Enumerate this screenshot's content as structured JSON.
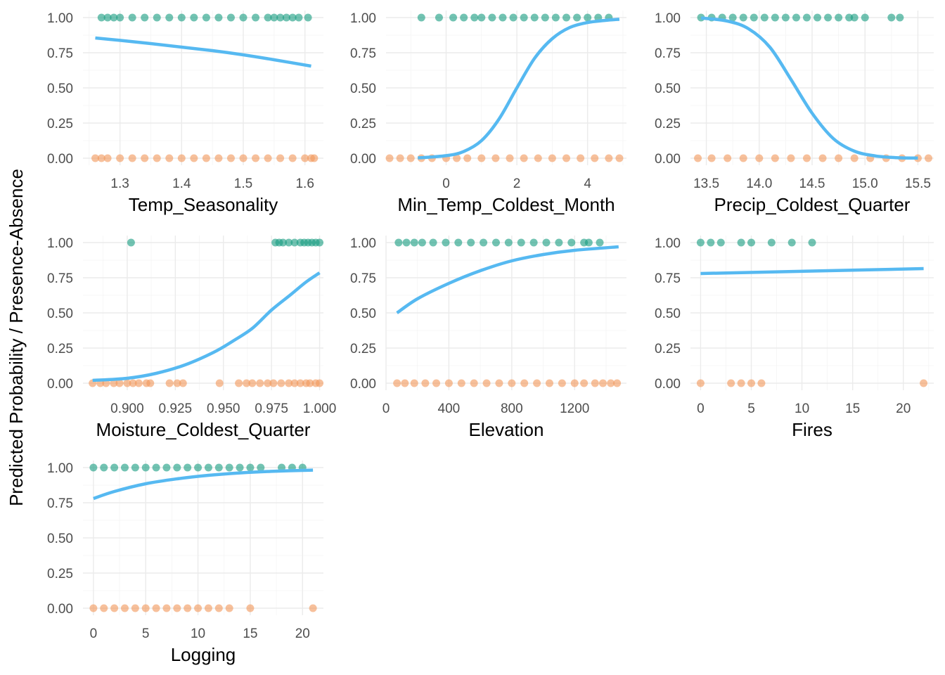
{
  "y_axis_title": "Predicted Probability / Presence-Absence",
  "colors": {
    "presence": "#1b9e82",
    "absence": "#f29a5e",
    "curve": "#56b9f1"
  },
  "chart_data": [
    {
      "type": "scatter",
      "xlabel": "Temp_Seasonality",
      "xlim": [
        1.24,
        1.63
      ],
      "xticks": [
        1.3,
        1.4,
        1.5,
        1.6
      ],
      "xtick_labels": [
        "1.3",
        "1.4",
        "1.5",
        "1.6"
      ],
      "ylim": [
        -0.05,
        1.05
      ],
      "yticks": [
        0,
        0.25,
        0.5,
        0.75,
        1
      ],
      "ytick_labels": [
        "0.00",
        "0.25",
        "0.50",
        "0.75",
        "1.00"
      ],
      "grid": true,
      "presence_x": [
        1.27,
        1.28,
        1.29,
        1.3,
        1.32,
        1.34,
        1.36,
        1.38,
        1.4,
        1.42,
        1.44,
        1.46,
        1.48,
        1.5,
        1.52,
        1.54,
        1.55,
        1.56,
        1.57,
        1.58,
        1.59,
        1.605
      ],
      "absence_x": [
        1.26,
        1.27,
        1.28,
        1.3,
        1.32,
        1.34,
        1.36,
        1.38,
        1.4,
        1.42,
        1.44,
        1.46,
        1.48,
        1.5,
        1.52,
        1.54,
        1.56,
        1.58,
        1.6,
        1.61,
        1.615
      ],
      "curve": [
        [
          1.26,
          0.855
        ],
        [
          1.3,
          0.838
        ],
        [
          1.35,
          0.815
        ],
        [
          1.4,
          0.79
        ],
        [
          1.45,
          0.765
        ],
        [
          1.5,
          0.735
        ],
        [
          1.55,
          0.7
        ],
        [
          1.61,
          0.655
        ]
      ]
    },
    {
      "type": "scatter",
      "xlabel": "Min_Temp_Coldest_Month",
      "xlim": [
        -1.7,
        5.1
      ],
      "xticks": [
        0,
        2,
        4
      ],
      "xtick_labels": [
        "0",
        "2",
        "4"
      ],
      "ylim": [
        -0.05,
        1.05
      ],
      "yticks": [
        0,
        0.25,
        0.5,
        0.75,
        1
      ],
      "ytick_labels": [
        "0.00",
        "0.25",
        "0.50",
        "0.75",
        "1.00"
      ],
      "grid": true,
      "presence_x": [
        -0.7,
        -0.2,
        0.2,
        0.5,
        0.8,
        1.0,
        1.3,
        1.6,
        1.9,
        2.2,
        2.5,
        2.8,
        3.1,
        3.4,
        3.7,
        4.0,
        4.3,
        4.6
      ],
      "absence_x": [
        -1.6,
        -1.3,
        -1.0,
        -0.7,
        -0.4,
        0.0,
        0.3,
        0.6,
        1.0,
        1.4,
        1.8,
        2.2,
        2.6,
        3.0,
        3.4,
        3.8,
        4.2,
        4.6,
        4.9
      ],
      "curve": [
        [
          -0.8,
          0.002
        ],
        [
          0.0,
          0.018
        ],
        [
          0.5,
          0.048
        ],
        [
          1.0,
          0.125
        ],
        [
          1.5,
          0.28
        ],
        [
          2.0,
          0.5
        ],
        [
          2.5,
          0.71
        ],
        [
          3.0,
          0.85
        ],
        [
          3.5,
          0.93
        ],
        [
          4.0,
          0.965
        ],
        [
          4.5,
          0.98
        ],
        [
          4.9,
          0.988
        ]
      ]
    },
    {
      "type": "scatter",
      "xlabel": "Precip_Coldest_Quarter",
      "xlim": [
        13.35,
        15.65
      ],
      "xticks": [
        13.5,
        14.0,
        14.5,
        15.0,
        15.5
      ],
      "xtick_labels": [
        "13.5",
        "14.0",
        "14.5",
        "15.0",
        "15.5"
      ],
      "ylim": [
        -0.05,
        1.05
      ],
      "yticks": [
        0,
        0.25,
        0.5,
        0.75,
        1
      ],
      "ytick_labels": [
        "0.00",
        "0.25",
        "0.50",
        "0.75",
        "1.00"
      ],
      "grid": true,
      "presence_x": [
        13.45,
        13.55,
        13.65,
        13.75,
        13.85,
        13.95,
        14.05,
        14.15,
        14.25,
        14.35,
        14.45,
        14.55,
        14.65,
        14.75,
        14.85,
        14.9,
        15.0,
        15.25,
        15.33
      ],
      "absence_x": [
        13.42,
        13.55,
        13.7,
        13.85,
        14.0,
        14.15,
        14.3,
        14.45,
        14.6,
        14.75,
        14.9,
        15.05,
        15.2,
        15.35,
        15.5,
        15.6
      ],
      "curve": [
        [
          13.45,
          0.997
        ],
        [
          13.7,
          0.975
        ],
        [
          13.9,
          0.92
        ],
        [
          14.1,
          0.79
        ],
        [
          14.3,
          0.56
        ],
        [
          14.5,
          0.32
        ],
        [
          14.7,
          0.14
        ],
        [
          14.9,
          0.05
        ],
        [
          15.1,
          0.016
        ],
        [
          15.3,
          0.004
        ],
        [
          15.5,
          0.001
        ]
      ]
    },
    {
      "type": "scatter",
      "xlabel": "Moisture_Coldest_Quarter",
      "xlim": [
        0.877,
        1.002
      ],
      "xticks": [
        0.9,
        0.925,
        0.95,
        0.975,
        1.0
      ],
      "xtick_labels": [
        "0.900",
        "0.925",
        "0.950",
        "0.975",
        "1.000"
      ],
      "ylim": [
        -0.05,
        1.05
      ],
      "yticks": [
        0,
        0.25,
        0.5,
        0.75,
        1
      ],
      "ytick_labels": [
        "0.00",
        "0.25",
        "0.50",
        "0.75",
        "1.00"
      ],
      "grid": true,
      "presence_x": [
        0.902,
        0.977,
        0.979,
        0.981,
        0.984,
        0.987,
        0.99,
        0.992,
        0.994,
        0.996,
        0.998,
        1.0
      ],
      "absence_x": [
        0.882,
        0.886,
        0.889,
        0.893,
        0.896,
        0.9,
        0.903,
        0.906,
        0.91,
        0.912,
        0.922,
        0.926,
        0.929,
        0.948,
        0.958,
        0.962,
        0.965,
        0.969,
        0.973,
        0.976,
        0.98,
        0.984,
        0.987,
        0.99,
        0.993,
        0.995,
        0.998,
        1.0
      ],
      "curve": [
        [
          0.882,
          0.02
        ],
        [
          0.9,
          0.035
        ],
        [
          0.915,
          0.07
        ],
        [
          0.93,
          0.13
        ],
        [
          0.945,
          0.22
        ],
        [
          0.955,
          0.3
        ],
        [
          0.965,
          0.39
        ],
        [
          0.975,
          0.52
        ],
        [
          0.985,
          0.63
        ],
        [
          0.993,
          0.72
        ],
        [
          1.0,
          0.785
        ]
      ]
    },
    {
      "type": "scatter",
      "xlabel": "Elevation",
      "xlim": [
        0,
        1530
      ],
      "xticks": [
        0,
        400,
        800,
        1200
      ],
      "xtick_labels": [
        "0",
        "400",
        "800",
        "1200"
      ],
      "ylim": [
        -0.05,
        1.05
      ],
      "yticks": [
        0,
        0.25,
        0.5,
        0.75,
        1
      ],
      "ytick_labels": [
        "0.00",
        "0.25",
        "0.50",
        "0.75",
        "1.00"
      ],
      "grid": true,
      "presence_x": [
        80,
        130,
        180,
        230,
        300,
        380,
        460,
        540,
        620,
        700,
        780,
        860,
        940,
        1020,
        1100,
        1180,
        1260,
        1290,
        1360
      ],
      "absence_x": [
        70,
        120,
        180,
        250,
        320,
        400,
        480,
        560,
        640,
        720,
        800,
        880,
        960,
        1040,
        1120,
        1200,
        1260,
        1330,
        1380,
        1430,
        1470
      ],
      "curve": [
        [
          70,
          0.5
        ],
        [
          200,
          0.6
        ],
        [
          400,
          0.71
        ],
        [
          600,
          0.8
        ],
        [
          800,
          0.87
        ],
        [
          1000,
          0.915
        ],
        [
          1200,
          0.945
        ],
        [
          1480,
          0.97
        ]
      ]
    },
    {
      "type": "scatter",
      "xlabel": "Fires",
      "xlim": [
        -1.0,
        23.0
      ],
      "xticks": [
        0,
        5,
        10,
        15,
        20
      ],
      "xtick_labels": [
        "0",
        "5",
        "10",
        "15",
        "20"
      ],
      "ylim": [
        -0.05,
        1.05
      ],
      "yticks": [
        0,
        0.25,
        0.5,
        0.75,
        1
      ],
      "ytick_labels": [
        "0.00",
        "0.25",
        "0.50",
        "0.75",
        "1.00"
      ],
      "grid": true,
      "presence_x": [
        0,
        1,
        2,
        4,
        5,
        7,
        9,
        11
      ],
      "absence_x": [
        0,
        3,
        4,
        5,
        6,
        22
      ],
      "curve": [
        [
          0,
          0.78
        ],
        [
          22,
          0.815
        ]
      ]
    },
    {
      "type": "scatter",
      "xlabel": "Logging",
      "xlim": [
        -1.0,
        22.0
      ],
      "xticks": [
        0,
        5,
        10,
        15,
        20
      ],
      "xtick_labels": [
        "0",
        "5",
        "10",
        "15",
        "20"
      ],
      "ylim": [
        -0.05,
        1.05
      ],
      "yticks": [
        0,
        0.25,
        0.5,
        0.75,
        1
      ],
      "ytick_labels": [
        "0.00",
        "0.25",
        "0.50",
        "0.75",
        "1.00"
      ],
      "grid": true,
      "presence_x": [
        0,
        1,
        2,
        3,
        4,
        5,
        6,
        7,
        8,
        9,
        10,
        11,
        12,
        13,
        14,
        15,
        16,
        18,
        19,
        20
      ],
      "absence_x": [
        0,
        1,
        2,
        3,
        4,
        5,
        6,
        7,
        8,
        9,
        10,
        11,
        12,
        13,
        15,
        21
      ],
      "curve": [
        [
          0,
          0.78
        ],
        [
          2,
          0.83
        ],
        [
          5,
          0.885
        ],
        [
          8,
          0.92
        ],
        [
          11,
          0.945
        ],
        [
          14,
          0.962
        ],
        [
          17,
          0.973
        ],
        [
          21,
          0.982
        ]
      ]
    }
  ]
}
